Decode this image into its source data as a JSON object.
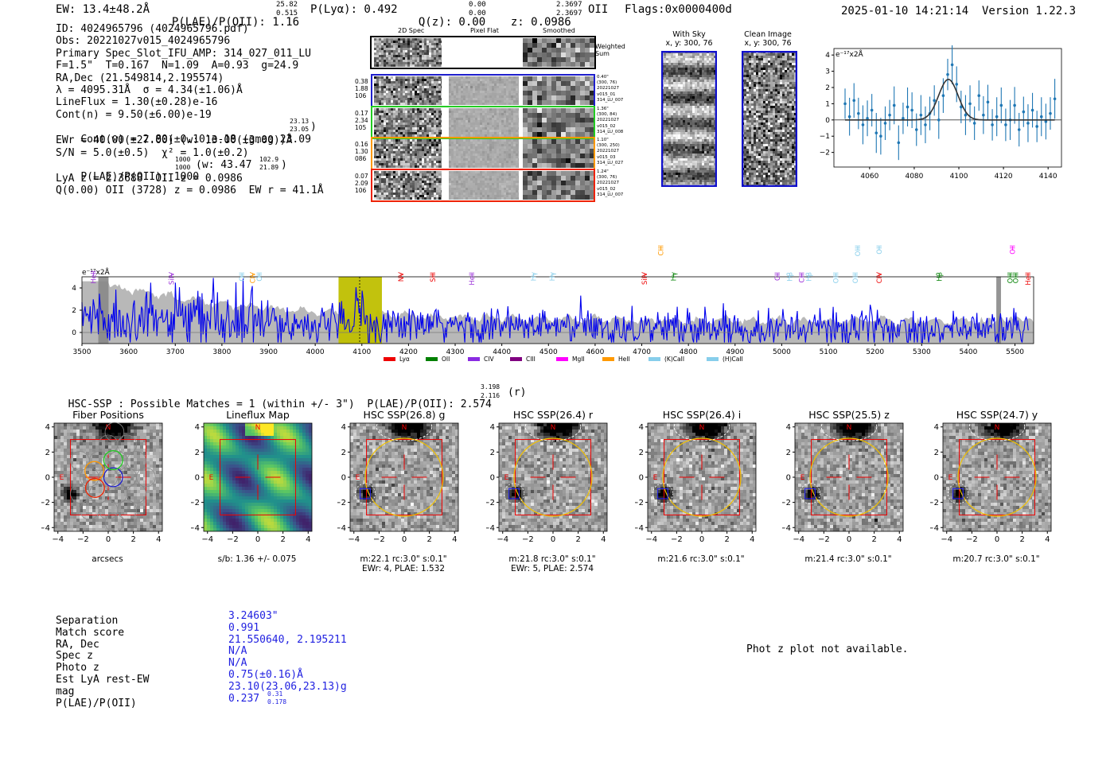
{
  "header": {
    "ew": "EW: 13.4±48.2Å",
    "plae_label": "P(LAE)/P(OII): 1.16",
    "plae_sup": "25.82",
    "plae_sub": "0.515",
    "plya": "P(Lyα): 0.492",
    "qz_label": "Q(z): 0.00",
    "qz_sup": "0.00",
    "qz_sub": "0.00",
    "z_label": "z: 0.0986",
    "z_sup": "2.3697",
    "z_sub": "2.3697",
    "z_line": "OII",
    "flags": "Flags:0x0000400d",
    "datetime": "2025-01-10 14:21:14",
    "version": "Version 1.22.3"
  },
  "info": {
    "id": "ID: 4024965796 (4024965796.pdf)",
    "obs": "Obs: 20221027v015_4024965796",
    "primary": "Primary Spec_Slot_IFU_AMP: 314_027_011_LU",
    "params": "F=1.5\"  T=0.167  N=1.09  A=0.93  g=24.9",
    "radec": "RA,Dec (21.549814,2.195574)",
    "lambda": "λ = 4095.31Å  σ = 4.34(±1.06)Å",
    "lineflux": "LineFlux = 1.30(±0.28)e-16",
    "contn": "Cont(n) = 9.50(±6.00)e-19",
    "contw": "Cont(w) = 2.80(±0.10)e-18 (gmag 23.09",
    "contw_sup": "23.13",
    "contw_sub": "23.05",
    "contw_close": ")",
    "ewr": "EWr = 40.00(±27.00) (w: 13.00(±3.00))Å",
    "sn": "S/N = 5.0(±0.5)  χ² = 1.0(±0.2)",
    "plae": "P(LAE)/P(OII): 1000",
    "plae_sup": "1000",
    "plae_sub": "1000",
    "plae_w": "(w: 43.47",
    "plae_w_sup": "102.9",
    "plae_w_sub": "21.89",
    "plae_w_close": ")",
    "lya": "LyA z = 2.3688  OII z = 0.0986",
    "q": "Q(0.00) OII (3728) z = 0.0986  EW r = 41.1Å"
  },
  "twod": {
    "col_headers": [
      "2D Spec",
      "Pixel Flat",
      "Smoothed"
    ],
    "weighted_sum": "Weighted Sum",
    "rows": [
      {
        "left": [
          "0.38",
          "1.88",
          "106"
        ],
        "right": [
          "0.40\"",
          "(300, 76)",
          "20221027",
          "v015_01",
          "314_LU_007"
        ],
        "color": "#1f1fcc"
      },
      {
        "left": [
          "0.17",
          "2.34",
          "105"
        ],
        "right": [
          "1.36\"",
          "(300, 84)",
          "20221027",
          "v015_02",
          "314_LU_008"
        ],
        "color": "#22cc22"
      },
      {
        "left": [
          "0.16",
          "1.30",
          "086"
        ],
        "right": [
          "1.10\"",
          "(300, 250)",
          "20221027",
          "v015_03",
          "314_LU_027"
        ],
        "color": "#ff9900"
      },
      {
        "left": [
          "0.07",
          "2.09",
          "106"
        ],
        "right": [
          "1.24\"",
          "(300, 76)",
          "20221027",
          "v015_02",
          "314_LU_007"
        ],
        "color": "#ee2200"
      }
    ]
  },
  "sky_panels": {
    "with_sky": {
      "title": "With Sky",
      "coords": "x, y: 300, 76"
    },
    "clean": {
      "title": "Clean Image",
      "coords": "x, y: 300, 76"
    }
  },
  "chart_data": [
    {
      "type": "scatter",
      "name": "zoom-fit",
      "ylabel": "e⁻¹⁷x2Å",
      "xlim": [
        4044,
        4146
      ],
      "ylim": [
        -2.9,
        4.4
      ],
      "xticks": [
        4060,
        4080,
        4100,
        4120,
        4140
      ],
      "yticks": [
        -2,
        -1,
        0,
        1,
        2,
        3,
        4
      ],
      "points_x": [
        4049,
        4051,
        4053,
        4055,
        4057,
        4059,
        4061,
        4063,
        4065,
        4067,
        4069,
        4071,
        4073,
        4075,
        4077,
        4079,
        4081,
        4083,
        4085,
        4087,
        4089,
        4091,
        4093,
        4095,
        4097,
        4099,
        4101,
        4103,
        4105,
        4107,
        4109,
        4111,
        4113,
        4115,
        4117,
        4119,
        4121,
        4123,
        4125,
        4127,
        4129,
        4131,
        4133,
        4135,
        4137,
        4139,
        4141,
        4143
      ],
      "points_y": [
        1.0,
        0.2,
        1.2,
        0.4,
        -0.3,
        0.1,
        0.6,
        -0.8,
        -1.0,
        -0.2,
        0.3,
        0.9,
        -1.4,
        0.1,
        0.8,
        0.6,
        -0.6,
        0.3,
        -0.3,
        0.4,
        1.2,
        0.0,
        1.5,
        2.8,
        3.4,
        2.2,
        0.8,
        0.3,
        1.0,
        -0.2,
        1.5,
        0.3,
        1.1,
        -0.3,
        0.2,
        0.9,
        -0.3,
        0.0,
        0.9,
        -0.6,
        0.5,
        -0.2,
        0.6,
        -0.4,
        0.2,
        -0.1,
        0.4,
        1.3
      ],
      "errors": 1.1,
      "fit_center": 4095.3,
      "fit_sigma": 4.34,
      "fit_amp": 2.5
    },
    {
      "type": "line",
      "name": "full-spectrum",
      "ylabel": "e⁻¹⁷x2Å",
      "xlim": [
        3500,
        5540
      ],
      "ylim": [
        -1,
        5
      ],
      "xticks": [
        3500,
        3600,
        3700,
        3800,
        3900,
        4000,
        4100,
        4200,
        4300,
        4400,
        4500,
        4600,
        4700,
        4800,
        4900,
        5000,
        5100,
        5200,
        5300,
        5400,
        5500
      ],
      "yticks": [
        0,
        2,
        4
      ],
      "highlight_range": [
        4050,
        4143
      ],
      "line_center": 4095.3,
      "line_markers": [
        {
          "label": "HeII",
          "x": 3525,
          "color": "#9b30d9",
          "row": 1
        },
        {
          "label": "SiIV",
          "x": 3692,
          "color": "#9b30d9",
          "row": 2
        },
        {
          "label": "OII",
          "x": 3843,
          "color": "#87ceeb",
          "row": 2
        },
        {
          "label": "CIV",
          "x": 3866,
          "color": "#ff9900",
          "row": 2
        },
        {
          "label": "OII",
          "x": 3880,
          "color": "#87ceeb",
          "row": 2
        },
        {
          "label": "NV",
          "x": 4184,
          "color": "#ee0000",
          "row": 2
        },
        {
          "label": "SiII",
          "x": 4252,
          "color": "#ee0000",
          "row": 2
        },
        {
          "label": "HeII",
          "x": 4336,
          "color": "#9b30d9",
          "row": 2
        },
        {
          "label": "Hγ",
          "x": 4468,
          "color": "#87ceeb",
          "row": 2
        },
        {
          "label": "Hγ",
          "x": 4508,
          "color": "#87ceeb",
          "row": 2
        },
        {
          "label": "SiIV",
          "x": 4706,
          "color": "#ee0000",
          "row": 2
        },
        {
          "label": "CIII",
          "x": 4741,
          "color": "#ff9900",
          "row": 0
        },
        {
          "label": "Hγ",
          "x": 4768,
          "color": "#008000",
          "row": 2
        },
        {
          "label": "CII",
          "x": 4991,
          "color": "#9b30d9",
          "row": 2
        },
        {
          "label": "Hβ",
          "x": 5017,
          "color": "#87ceeb",
          "row": 2
        },
        {
          "label": "CIII",
          "x": 5043,
          "color": "#9b30d9",
          "row": 2
        },
        {
          "label": "Hβ",
          "x": 5058,
          "color": "#87ceeb",
          "row": 2
        },
        {
          "label": "OIII",
          "x": 5116,
          "color": "#87ceeb",
          "row": 2
        },
        {
          "label": "OIII",
          "x": 5163,
          "color": "#87ceeb",
          "row": 0
        },
        {
          "label": "OIII",
          "x": 5158,
          "color": "#87ceeb",
          "row": 2
        },
        {
          "label": "OII",
          "x": 5209,
          "color": "#87ceeb",
          "row": 0
        },
        {
          "label": "CIV",
          "x": 5209,
          "color": "#ee0000",
          "row": 2
        },
        {
          "label": "Hβ",
          "x": 5338,
          "color": "#008000",
          "row": 2
        },
        {
          "label": "OIII",
          "x": 5490,
          "color": "#008000",
          "row": 2
        },
        {
          "label": "OII",
          "x": 5495,
          "color": "#ff00ff",
          "row": 0
        },
        {
          "label": "OIII",
          "x": 5502,
          "color": "#008000",
          "row": 2
        },
        {
          "label": "HeII",
          "x": 5528,
          "color": "#ee0000",
          "row": 2
        }
      ],
      "legend": [
        {
          "label": "Lyα",
          "color": "#ee0000"
        },
        {
          "label": "OII",
          "color": "#008000"
        },
        {
          "label": "CIV",
          "color": "#8a2be2"
        },
        {
          "label": "CIII",
          "color": "#800080"
        },
        {
          "label": "MgII",
          "color": "#ff00ff"
        },
        {
          "label": "HeII",
          "color": "#ff9900"
        },
        {
          "label": "(K)CaII",
          "color": "#87ceeb"
        },
        {
          "label": "(H)CaII",
          "color": "#87ceeb"
        }
      ]
    }
  ],
  "hsc": {
    "title": "HSC-SSP : Possible Matches = 1 (within +/- 3\")  P(LAE)/P(OII): 2.574",
    "title_sup": "3.198",
    "title_sub": "2.116",
    "title_band": "(r)",
    "axis_ticks": [
      "−4",
      "−2",
      "0",
      "2",
      "4"
    ],
    "north": "N",
    "east": "E",
    "panels": [
      {
        "title": "Fiber Positions",
        "caption": [
          "arcsecs"
        ],
        "kind": "fiber"
      },
      {
        "title": "Lineflux Map",
        "caption": [
          "s/b: 1.36 +/- 0.075"
        ],
        "kind": "flux"
      },
      {
        "title": "HSC SSP(26.8) g",
        "caption": [
          "m:22.1 rc:3.0\"  s:0.1\"",
          "EWr: 4, PLAE: 1.532"
        ],
        "kind": "img"
      },
      {
        "title": "HSC SSP(26.4) r",
        "caption": [
          "m:21.8 rc:3.0\"  s:0.1\"",
          "EWr: 5, PLAE: 2.574"
        ],
        "kind": "img"
      },
      {
        "title": "HSC SSP(26.4) i",
        "caption": [
          "m:21.6 rc:3.0\"  s:0.1\""
        ],
        "kind": "img"
      },
      {
        "title": "HSC SSP(25.5) z",
        "caption": [
          "m:21.4 rc:3.0\"  s:0.1\""
        ],
        "kind": "img"
      },
      {
        "title": "HSC SSP(24.7) y",
        "caption": [
          "m:20.7 rc:3.0\"  s:0.1\""
        ],
        "kind": "img"
      }
    ]
  },
  "match": {
    "labels": [
      "Separation",
      "Match score",
      "RA, Dec",
      "Spec z",
      "Photo z",
      "Est LyA rest-EW",
      "mag",
      "P(LAE)/P(OII)"
    ],
    "values": [
      "3.24603\"",
      "0.991",
      "21.550640, 2.195211",
      "N/A",
      "N/A",
      "0.75(±0.16)Å",
      "23.10(23.06,23.13)g",
      "0.237"
    ],
    "plae_sup": "0.31",
    "plae_sub": "0.178",
    "photz_note": "Phot z plot not available."
  }
}
